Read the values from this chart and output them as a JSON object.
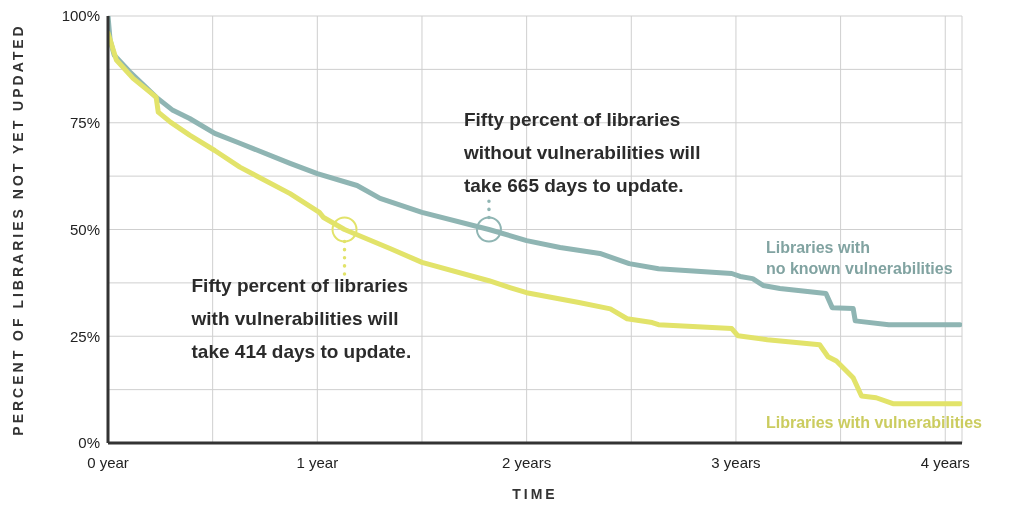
{
  "chart_data": {
    "type": "line",
    "xlabel": "TIME",
    "ylabel": "PERCENT OF LIBRARIES NOT YET UPDATED",
    "xlim": [
      0,
      4.08
    ],
    "ylim": [
      0,
      100
    ],
    "xticks": [
      {
        "value": 0,
        "label": "0 year"
      },
      {
        "value": 0.5,
        "label": null
      },
      {
        "value": 1,
        "label": "1 year"
      },
      {
        "value": 1.5,
        "label": null
      },
      {
        "value": 2,
        "label": "2 years"
      },
      {
        "value": 2.5,
        "label": null
      },
      {
        "value": 3,
        "label": "3 years"
      },
      {
        "value": 3.5,
        "label": null
      },
      {
        "value": 4,
        "label": "4 years"
      }
    ],
    "yticks": [
      {
        "value": 0,
        "label": "0%"
      },
      {
        "value": 12.5,
        "label": null
      },
      {
        "value": 25,
        "label": "25%"
      },
      {
        "value": 37.5,
        "label": null
      },
      {
        "value": 50,
        "label": "50%"
      },
      {
        "value": 62.5,
        "label": null
      },
      {
        "value": 75,
        "label": "75%"
      },
      {
        "value": 87.5,
        "label": null
      },
      {
        "value": 100,
        "label": "100%"
      }
    ],
    "grid": true,
    "legend": false,
    "marker": "none",
    "line_style": "solid",
    "series": [
      {
        "name": "Libraries with\nno known vulnerabilities",
        "color": "#8fb5b3",
        "x": [
          0,
          0.01,
          0.03,
          0.105,
          0.23,
          0.31,
          0.39,
          0.51,
          0.63,
          0.87,
          1.0,
          1.19,
          1.3,
          1.5,
          1.82,
          2.0,
          2.16,
          2.35,
          2.49,
          2.63,
          2.98,
          3.02,
          3.08,
          3.13,
          3.21,
          3.43,
          3.46,
          3.56,
          3.57,
          3.73,
          4.07
        ],
        "values": [
          100,
          94.4,
          90.8,
          86.9,
          81,
          77.9,
          76,
          72.5,
          70.2,
          65.5,
          63.1,
          60.3,
          57.3,
          54,
          50,
          47.4,
          45.8,
          44.4,
          42,
          40.8,
          39.7,
          39,
          38.5,
          36.9,
          36.2,
          35,
          31.7,
          31.5,
          28.6,
          27.7,
          27.7
        ]
      },
      {
        "name": "Libraries with vulnerabilities",
        "color": "#e2e36a",
        "x": [
          0,
          0.04,
          0.12,
          0.23,
          0.24,
          0.3,
          0.39,
          0.51,
          0.63,
          0.87,
          1.01,
          1.03,
          1.13,
          1.35,
          1.5,
          1.82,
          1.92,
          2.0,
          2.25,
          2.4,
          2.48,
          2.6,
          2.63,
          2.98,
          3.01,
          3.15,
          3.4,
          3.44,
          3.48,
          3.56,
          3.6,
          3.67,
          3.75,
          4.07
        ],
        "values": [
          96,
          89.7,
          85.4,
          81,
          77.5,
          75.1,
          72.1,
          68.5,
          64.6,
          58.4,
          54,
          52.8,
          50,
          45.5,
          42.3,
          38,
          36.4,
          35.2,
          32.9,
          31.4,
          29.1,
          28.2,
          27.7,
          26.8,
          25.1,
          24.2,
          23,
          20.2,
          19.2,
          15.3,
          11,
          10.6,
          9.2,
          9.2
        ]
      }
    ],
    "annotations": [
      {
        "text": "Fifty percent of libraries with vulnerabilities will take 414 days to update.",
        "x": 1.13,
        "y": 50
      },
      {
        "text": "Fifty percent of libraries without vulnerabilities will take 665 days to update.",
        "x": 1.82,
        "y": 50
      }
    ]
  }
}
